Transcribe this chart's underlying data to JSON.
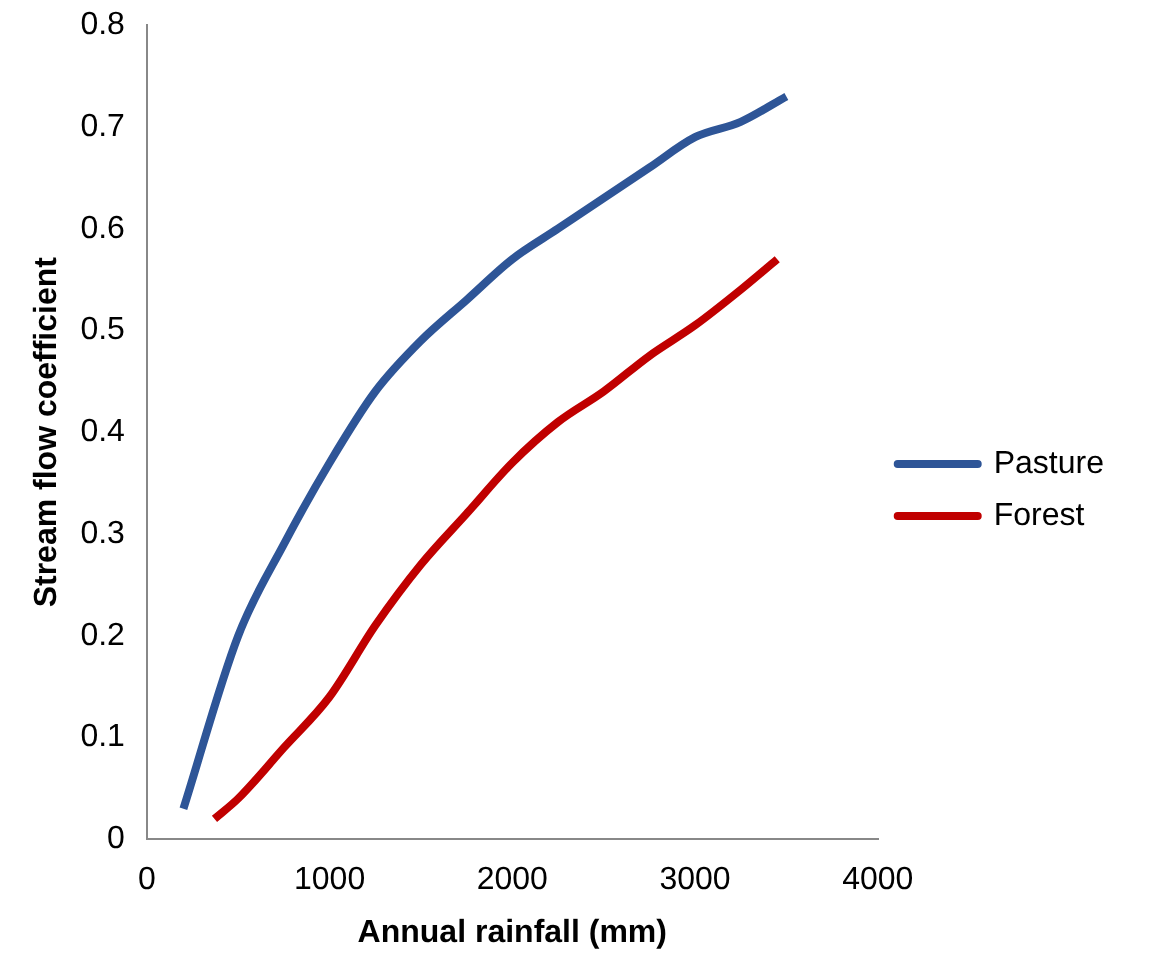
{
  "chart_data": {
    "type": "line",
    "xlabel": "Annual rainfall (mm)",
    "ylabel": "Stream flow coefficient",
    "xlim": [
      0,
      4000
    ],
    "xticks": [
      0,
      1000,
      2000,
      3000,
      4000
    ],
    "ylim": [
      0,
      0.8
    ],
    "yticks": [
      0,
      0.1,
      0.2,
      0.3,
      0.4,
      0.5,
      0.6,
      0.7,
      0.8
    ],
    "series": [
      {
        "name": "Pasture",
        "color": "#2e5597",
        "x": [
          200,
          500,
          750,
          1000,
          1250,
          1500,
          1750,
          2000,
          2250,
          2500,
          2750,
          3000,
          3250,
          3500
        ],
        "values": [
          0.03,
          0.2,
          0.29,
          0.37,
          0.44,
          0.49,
          0.53,
          0.57,
          0.6,
          0.63,
          0.66,
          0.69,
          0.705,
          0.73
        ]
      },
      {
        "name": "Forest",
        "color": "#c00000",
        "x": [
          370,
          500,
          750,
          1000,
          1250,
          1500,
          1750,
          2000,
          2250,
          2500,
          2750,
          3000,
          3250,
          3450
        ],
        "values": [
          0.02,
          0.04,
          0.09,
          0.14,
          0.21,
          0.27,
          0.32,
          0.37,
          0.41,
          0.44,
          0.475,
          0.505,
          0.54,
          0.57
        ]
      }
    ],
    "grid": false,
    "legend": "right",
    "marker": "none",
    "line_style": "solid"
  }
}
